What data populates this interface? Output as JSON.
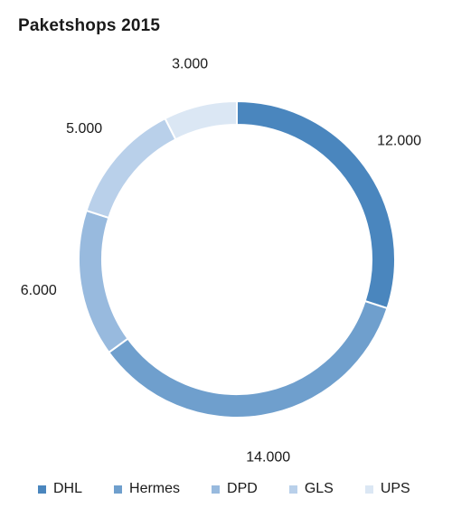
{
  "chart_data": {
    "type": "pie",
    "title": "Paketshops 2015",
    "categories": [
      "DHL",
      "Hermes",
      "DPD",
      "GLS",
      "UPS"
    ],
    "values": [
      12000,
      14000,
      6000,
      5000,
      3000
    ],
    "value_labels": [
      "12.000",
      "14.000",
      "6.000",
      "5.000",
      "3.000"
    ],
    "colors": [
      "#4a86be",
      "#6f9fcd",
      "#98bade",
      "#b9d0ea",
      "#dbe7f4"
    ],
    "donut": true,
    "legend_position": "bottom"
  }
}
